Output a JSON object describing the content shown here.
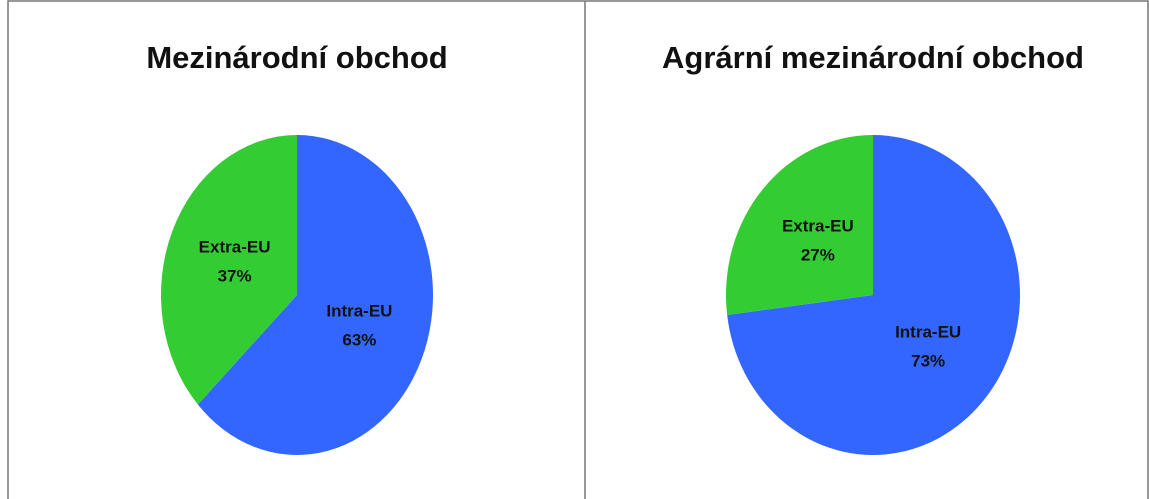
{
  "chart_data": [
    {
      "type": "pie",
      "title": "Mezinárodní obchod",
      "categories": [
        "Intra-EU",
        "Extra-EU"
      ],
      "values": [
        63,
        37
      ],
      "value_labels": [
        "63%",
        "37%"
      ],
      "colors": [
        "#3366ff",
        "#33cc33"
      ]
    },
    {
      "type": "pie",
      "title": "Agrární mezinárodní obchod",
      "categories": [
        "Intra-EU",
        "Extra-EU"
      ],
      "values": [
        73,
        27
      ],
      "value_labels": [
        "73%",
        "27%"
      ],
      "colors": [
        "#3366ff",
        "#33cc33"
      ]
    }
  ]
}
